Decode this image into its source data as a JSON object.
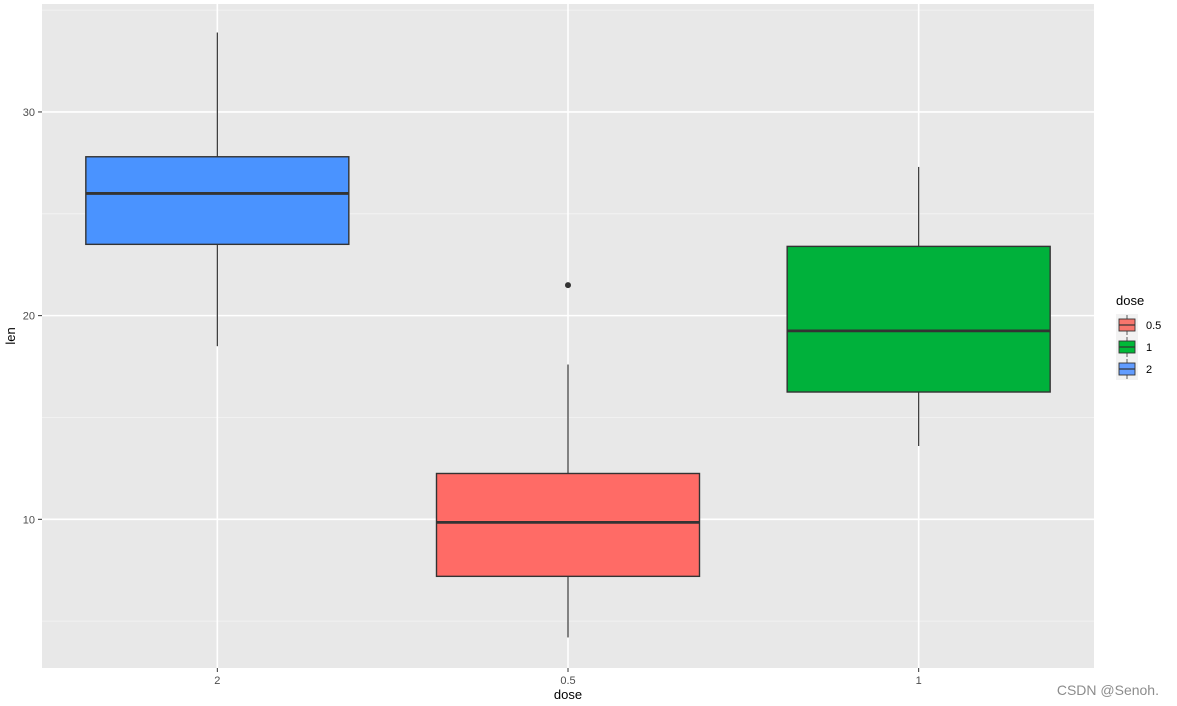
{
  "chart_data": {
    "type": "box",
    "categories": [
      "2",
      "0.5",
      "1"
    ],
    "xlabel": "dose",
    "ylabel": "len",
    "ylim": [
      2.7,
      35.3
    ],
    "y_ticks": [
      10,
      20,
      30
    ],
    "grid": true,
    "legend": {
      "title": "dose",
      "position": "right",
      "entries": [
        {
          "label": "0.5",
          "color": "#F8766D"
        },
        {
          "label": "1",
          "color": "#00BA38"
        },
        {
          "label": "2",
          "color": "#619CFF"
        }
      ]
    },
    "boxes": [
      {
        "category": "2",
        "color": "#4A93FF",
        "whisker_low": 18.5,
        "q1": 23.5,
        "median": 26.0,
        "q3": 27.8,
        "whisker_high": 33.9,
        "outliers": []
      },
      {
        "category": "0.5",
        "color": "#FF6B66",
        "whisker_low": 4.2,
        "q1": 7.2,
        "median": 9.85,
        "q3": 12.25,
        "whisker_high": 17.6,
        "outliers": [
          21.5
        ]
      },
      {
        "category": "1",
        "color": "#00B13B",
        "whisker_low": 13.6,
        "q1": 16.25,
        "median": 19.25,
        "q3": 23.4,
        "whisker_high": 27.3,
        "outliers": []
      }
    ]
  },
  "watermark": "CSDN @Senoh."
}
